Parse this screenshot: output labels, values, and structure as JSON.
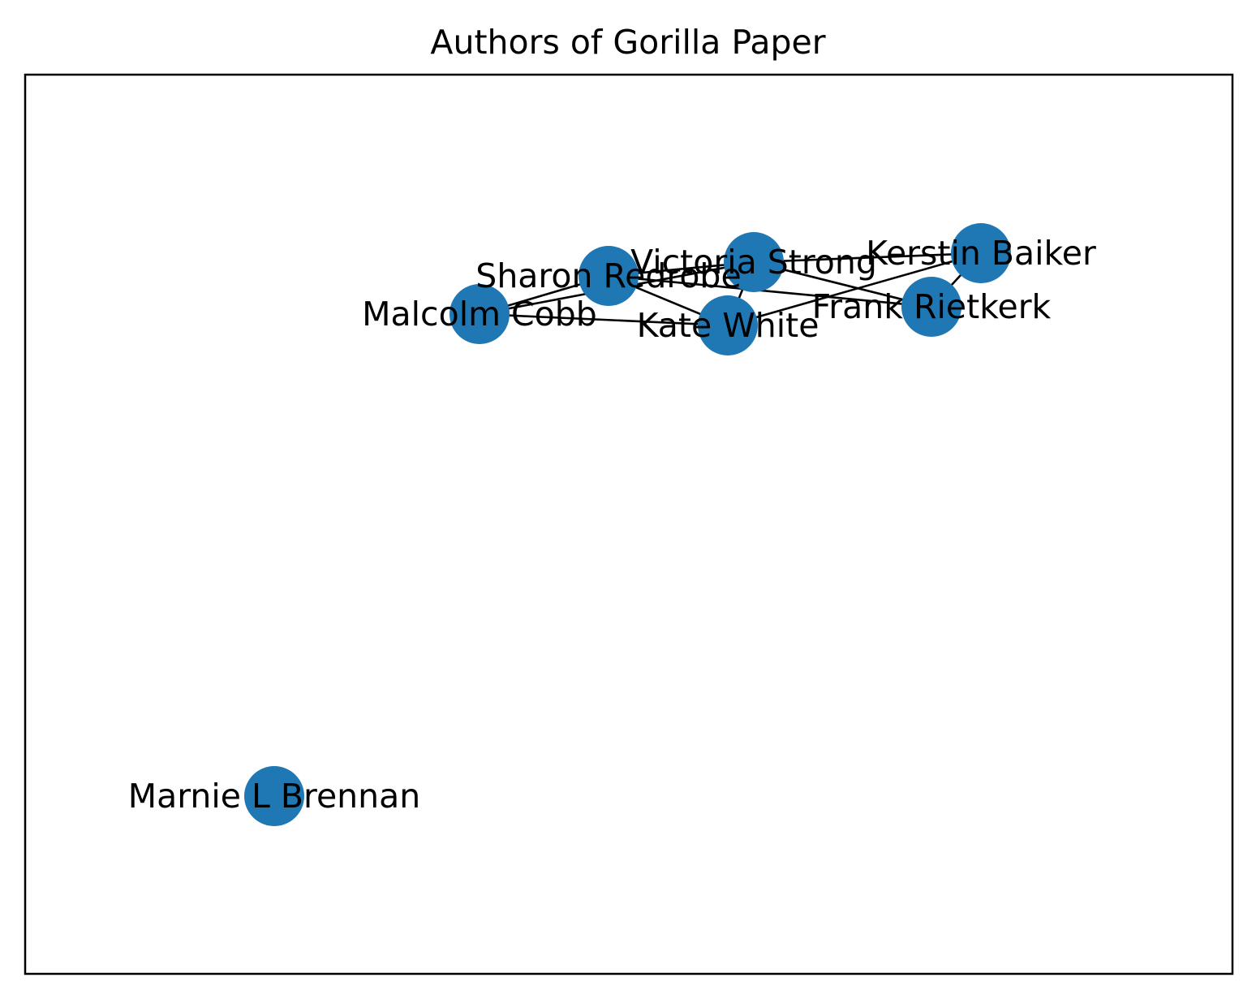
{
  "title": "Authors of Gorilla Paper",
  "colors": {
    "node": "#1f77b4",
    "edge": "#000000",
    "frame": "#000000",
    "background": "#ffffff"
  },
  "nodes": [
    {
      "id": "victoria-strong",
      "label": "Victoria Strong"
    },
    {
      "id": "kerstin-baiker",
      "label": "Kerstin Baiker"
    },
    {
      "id": "sharon-redrobe",
      "label": "Sharon Redrobe"
    },
    {
      "id": "frank-rietkerk",
      "label": "Frank Rietkerk"
    },
    {
      "id": "malcolm-cobb",
      "label": "Malcolm Cobb"
    },
    {
      "id": "kate-white",
      "label": "Kate White"
    },
    {
      "id": "marnie-l-brennan",
      "label": "Marnie L Brennan"
    }
  ],
  "edges": [
    [
      "malcolm-cobb",
      "sharon-redrobe"
    ],
    [
      "malcolm-cobb",
      "victoria-strong"
    ],
    [
      "malcolm-cobb",
      "kate-white"
    ],
    [
      "sharon-redrobe",
      "victoria-strong"
    ],
    [
      "sharon-redrobe",
      "kate-white"
    ],
    [
      "sharon-redrobe",
      "frank-rietkerk"
    ],
    [
      "victoria-strong",
      "kerstin-baiker"
    ],
    [
      "victoria-strong",
      "frank-rietkerk"
    ],
    [
      "victoria-strong",
      "kate-white"
    ],
    [
      "kate-white",
      "kerstin-baiker"
    ],
    [
      "kerstin-baiker",
      "frank-rietkerk"
    ]
  ]
}
